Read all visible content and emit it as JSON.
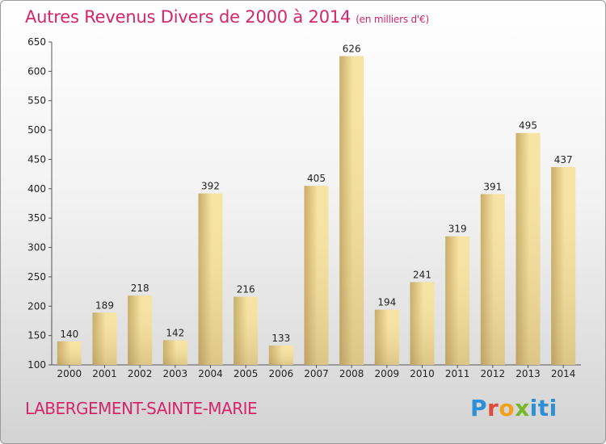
{
  "title": "Autres Revenus Divers de 2000 à 2014",
  "unit_label": "(en milliers d'€)",
  "location": "LABERGEMENT-SAINTE-MARIE",
  "brand": {
    "parts": [
      "P",
      "r",
      "o",
      "x",
      "iti"
    ],
    "colors": [
      "#2f8fd6",
      "#e24a3a",
      "#f2a11c",
      "#76b82a",
      "#2f8fd6"
    ]
  },
  "colors": {
    "title": "#d6256a",
    "bar_light": "#f7e3a3",
    "bar_dark": "#c8ac69"
  },
  "chart_data": {
    "type": "bar",
    "categories": [
      "2000",
      "2001",
      "2002",
      "2003",
      "2004",
      "2005",
      "2006",
      "2007",
      "2008",
      "2009",
      "2010",
      "2011",
      "2012",
      "2013",
      "2014"
    ],
    "values": [
      140,
      189,
      218,
      142,
      392,
      216,
      133,
      405,
      626,
      194,
      241,
      319,
      391,
      495,
      437
    ],
    "ylim": [
      100,
      650
    ],
    "yticks": [
      100,
      150,
      200,
      250,
      300,
      350,
      400,
      450,
      500,
      550,
      600,
      650
    ],
    "grid": false,
    "xlabel": "",
    "ylabel": ""
  }
}
